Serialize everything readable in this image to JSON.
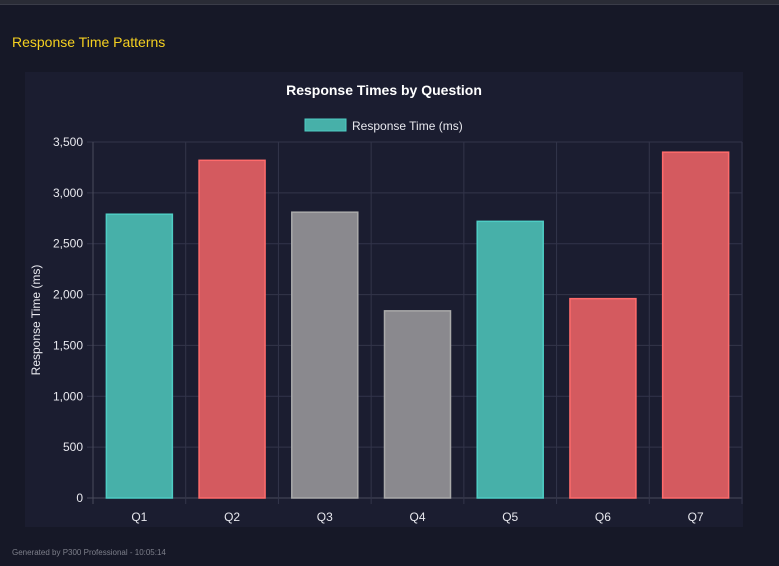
{
  "section_title": "Response Time Patterns",
  "footer": "Generated by P300 Professional - 10:05:14",
  "chart_data": {
    "type": "bar",
    "title": "Response Times by Question",
    "legend": {
      "label": "Response Time (ms)",
      "placement": "top"
    },
    "categories": [
      "Q1",
      "Q2",
      "Q3",
      "Q4",
      "Q5",
      "Q6",
      "Q7"
    ],
    "values": [
      2790,
      3320,
      2810,
      1840,
      2720,
      1960,
      3400
    ],
    "bar_colors": [
      "teal",
      "red",
      "gray",
      "gray",
      "teal",
      "red",
      "red"
    ],
    "colors": {
      "teal": {
        "fill": "#47b0a9",
        "border": "#4ecdc4"
      },
      "red": {
        "fill": "#d45a5f",
        "border": "#ff6b6b"
      },
      "gray": {
        "fill": "#8a898e",
        "border": "#aaaaaa"
      }
    },
    "xlabel": "",
    "ylabel": "Response Time (ms)",
    "ylim": [
      0,
      3500
    ],
    "yticks": [
      0,
      500,
      1000,
      1500,
      2000,
      2500,
      3000,
      3500
    ],
    "ytick_labels": [
      "0",
      "500",
      "1,000",
      "1,500",
      "2,000",
      "2,500",
      "3,000",
      "3,500"
    ],
    "grid": true
  }
}
